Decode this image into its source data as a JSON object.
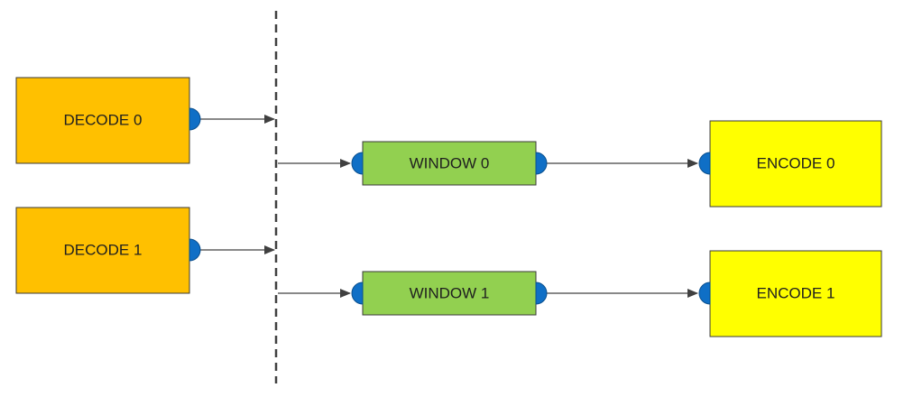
{
  "colors": {
    "decode_fill": "#FFC000",
    "window_fill": "#92D050",
    "encode_fill": "#FFFF00",
    "node_border": "#3a3a3a",
    "port_fill": "#0F6FC6",
    "port_stroke": "#0a4f8e",
    "edge": "#404040"
  },
  "nodes": {
    "decode0": {
      "label": "DECODE 0"
    },
    "decode1": {
      "label": "DECODE 1"
    },
    "window0": {
      "label": "WINDOW 0"
    },
    "window1": {
      "label": "WINDOW 1"
    },
    "encode0": {
      "label": "ENCODE 0"
    },
    "encode1": {
      "label": "ENCODE 1"
    }
  },
  "edges": [
    {
      "from": "decode0",
      "to": "barrier"
    },
    {
      "from": "decode1",
      "to": "barrier"
    },
    {
      "from": "barrier",
      "to": "window0"
    },
    {
      "from": "barrier",
      "to": "window1"
    },
    {
      "from": "window0",
      "to": "encode0"
    },
    {
      "from": "window1",
      "to": "encode1"
    }
  ]
}
